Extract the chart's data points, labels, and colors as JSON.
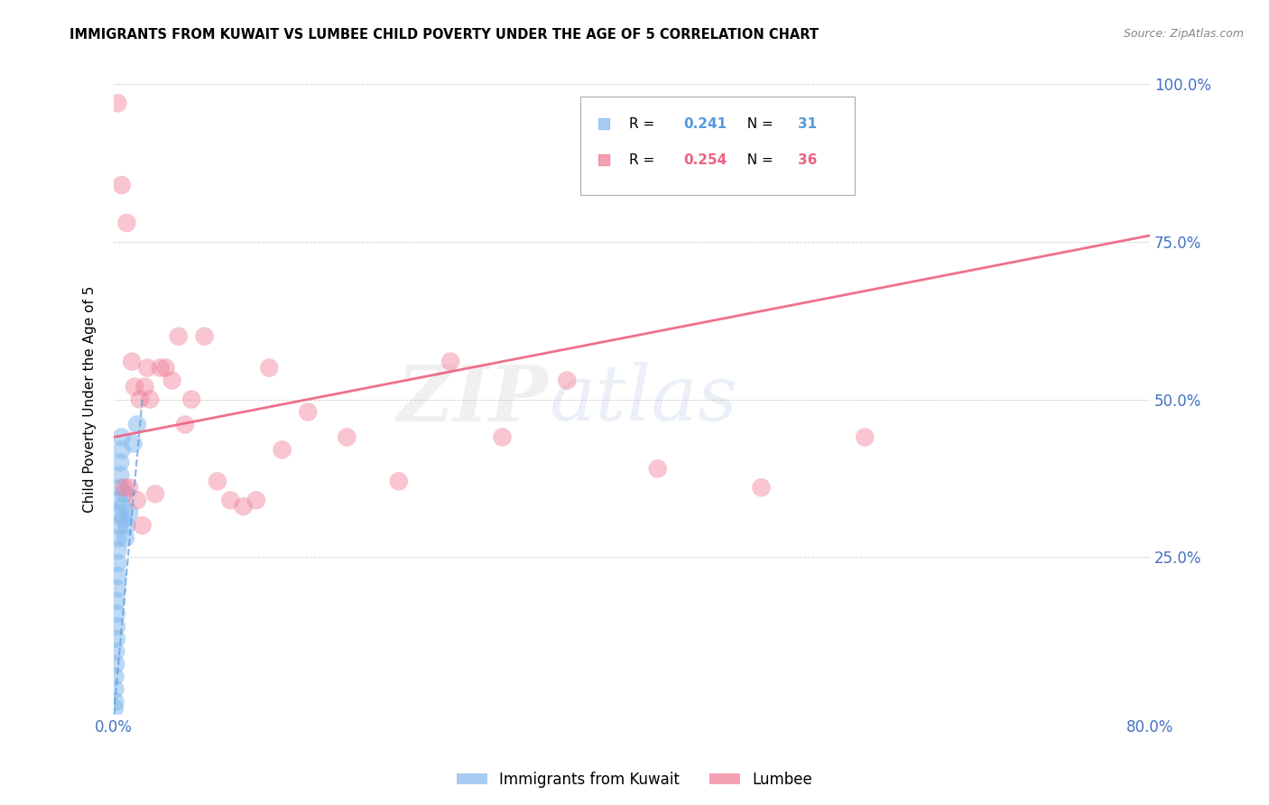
{
  "title": "IMMIGRANTS FROM KUWAIT VS LUMBEE CHILD POVERTY UNDER THE AGE OF 5 CORRELATION CHART",
  "source": "Source: ZipAtlas.com",
  "ylabel": "Child Poverty Under the Age of 5",
  "xlim": [
    0.0,
    0.8
  ],
  "ylim": [
    0.0,
    1.0
  ],
  "color_kuwait": "#88BBEE",
  "color_lumbee": "#F08098",
  "color_kuwait_dark": "#5599DD",
  "color_lumbee_dark": "#EE6080",
  "legend_R1": "0.241",
  "legend_N1": "31",
  "legend_R2": "0.254",
  "legend_N2": "36",
  "watermark_zip": "ZIP",
  "watermark_atlas": "atlas",
  "kuwait_x": [
    0.0005,
    0.001,
    0.001,
    0.001,
    0.0015,
    0.0015,
    0.002,
    0.002,
    0.002,
    0.002,
    0.0025,
    0.003,
    0.003,
    0.003,
    0.003,
    0.004,
    0.004,
    0.004,
    0.005,
    0.005,
    0.005,
    0.006,
    0.006,
    0.007,
    0.007,
    0.008,
    0.009,
    0.01,
    0.012,
    0.015,
    0.018
  ],
  "kuwait_y": [
    0.01,
    0.02,
    0.04,
    0.06,
    0.08,
    0.1,
    0.12,
    0.14,
    0.16,
    0.18,
    0.2,
    0.22,
    0.24,
    0.26,
    0.28,
    0.3,
    0.32,
    0.34,
    0.36,
    0.38,
    0.4,
    0.42,
    0.44,
    0.31,
    0.33,
    0.35,
    0.28,
    0.3,
    0.32,
    0.43,
    0.46
  ],
  "lumbee_x": [
    0.006,
    0.01,
    0.014,
    0.016,
    0.02,
    0.024,
    0.026,
    0.028,
    0.032,
    0.036,
    0.04,
    0.045,
    0.05,
    0.055,
    0.06,
    0.07,
    0.08,
    0.09,
    0.1,
    0.11,
    0.12,
    0.13,
    0.15,
    0.18,
    0.22,
    0.26,
    0.3,
    0.35,
    0.42,
    0.5,
    0.58,
    0.003,
    0.008,
    0.012,
    0.018,
    0.022
  ],
  "lumbee_y": [
    0.84,
    0.78,
    0.56,
    0.52,
    0.5,
    0.52,
    0.55,
    0.5,
    0.35,
    0.55,
    0.55,
    0.53,
    0.6,
    0.46,
    0.5,
    0.6,
    0.37,
    0.34,
    0.33,
    0.34,
    0.55,
    0.42,
    0.48,
    0.44,
    0.37,
    0.56,
    0.44,
    0.53,
    0.39,
    0.36,
    0.44,
    0.97,
    0.36,
    0.36,
    0.34,
    0.3
  ],
  "kuwait_line_x": [
    0.0,
    0.022
  ],
  "kuwait_line_y": [
    0.0,
    0.5
  ],
  "lumbee_line_x": [
    0.0,
    0.8
  ],
  "lumbee_line_y": [
    0.44,
    0.76
  ]
}
